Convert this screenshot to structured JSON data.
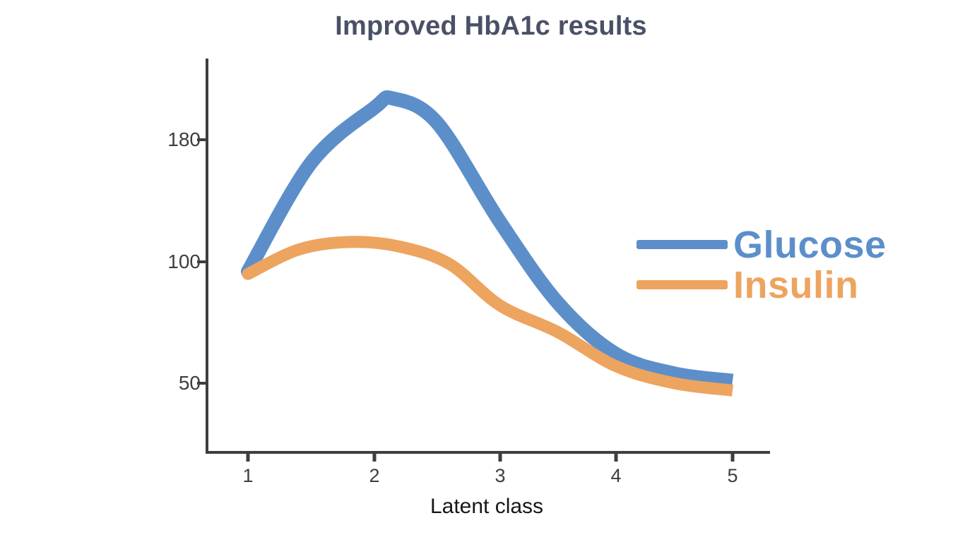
{
  "title": "Improved HbA1c results",
  "colors": {
    "background": "#FFFFFF",
    "title": "#4A5166",
    "axis": "#3E3E3E",
    "tick_label": "#3E3E3E",
    "xlabel": "#161616",
    "glucose": "#5C8FCA",
    "insulin": "#EDA45F"
  },
  "y_axis": {
    "labels": [
      "180",
      "100",
      "50"
    ]
  },
  "x_axis": {
    "labels": [
      "1",
      "2",
      "3",
      "4",
      "5"
    ],
    "title": "Latent class"
  },
  "legend": {
    "position": "right",
    "items": [
      {
        "label": "Glucose"
      },
      {
        "label": "Insulin"
      }
    ]
  },
  "chart_data": {
    "type": "line",
    "title": "Improved HbA1c results",
    "xlabel": "Latent class",
    "ylabel": "",
    "x_ticks": [
      1,
      2,
      3,
      4,
      5
    ],
    "y_ticks": [
      180,
      100,
      50
    ],
    "xlim": [
      1,
      5
    ],
    "ylim": [
      30,
      215
    ],
    "grid": false,
    "legend_position": "right",
    "series": [
      {
        "name": "Glucose",
        "color": "#5C8FCA",
        "points": [
          [
            1,
            96
          ],
          [
            1.5,
            165
          ],
          [
            2,
            201
          ],
          [
            2.15,
            207
          ],
          [
            2.5,
            191
          ],
          [
            3,
            126
          ],
          [
            3.5,
            83
          ],
          [
            4,
            62
          ],
          [
            4.5,
            54
          ],
          [
            5,
            51
          ]
        ]
      },
      {
        "name": "Insulin",
        "color": "#EDA45F",
        "points": [
          [
            1,
            95
          ],
          [
            1.4,
            108
          ],
          [
            1.8,
            113
          ],
          [
            2.2,
            110
          ],
          [
            2.6,
            99
          ],
          [
            3,
            82
          ],
          [
            3.5,
            71
          ],
          [
            4,
            57
          ],
          [
            4.5,
            50
          ],
          [
            5,
            47
          ]
        ]
      }
    ]
  }
}
